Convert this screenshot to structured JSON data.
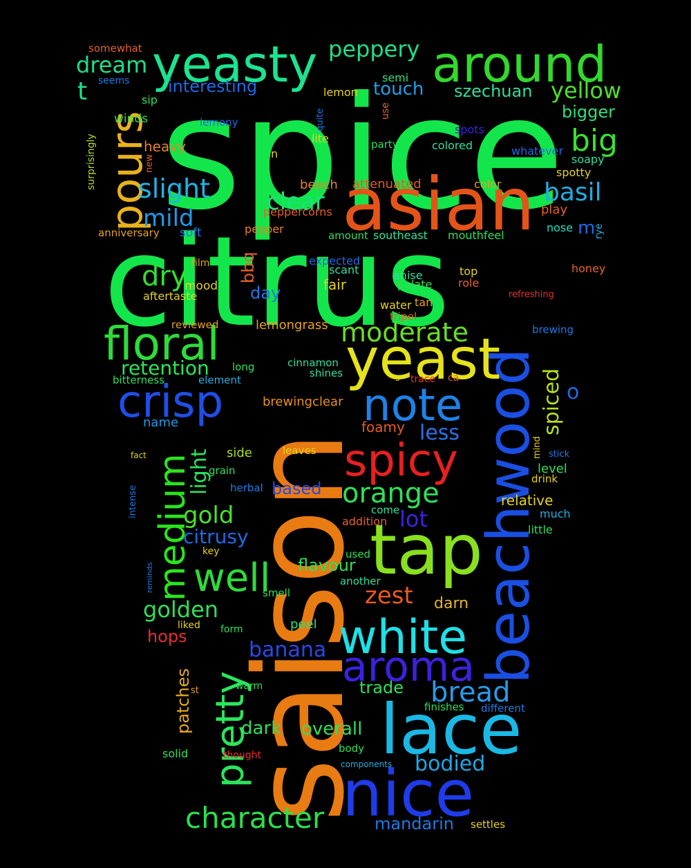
{
  "background_color": "#000000",
  "words": [
    {
      "text": "spice",
      "color": "#13E64A"
    },
    {
      "text": "citrus",
      "color": "#13E64A"
    },
    {
      "text": "saison",
      "color": "#E87B12"
    },
    {
      "text": "beachwood",
      "color": "#1B4FE3"
    },
    {
      "text": "asian",
      "color": "#E45419"
    },
    {
      "text": "yeasty",
      "color": "#1CE38F"
    },
    {
      "text": "around",
      "color": "#32D92C"
    },
    {
      "text": "yeast",
      "color": "#E6E21B"
    },
    {
      "text": "floral",
      "color": "#2EDB3A"
    },
    {
      "text": "tap",
      "color": "#8ADF1F"
    },
    {
      "text": "lace",
      "color": "#1BB8E5"
    },
    {
      "text": "nice",
      "color": "#1F3CEA"
    },
    {
      "text": "note",
      "color": "#1E82E8"
    },
    {
      "text": "crisp",
      "color": "#1F4FE8"
    },
    {
      "text": "white",
      "color": "#1EE0E6"
    },
    {
      "text": "spicy",
      "color": "#E82020"
    },
    {
      "text": "pours",
      "color": "#E8B21C"
    },
    {
      "text": "medium",
      "color": "#2AE51C"
    },
    {
      "text": "pretty",
      "color": "#2AE55C"
    },
    {
      "text": "well",
      "color": "#2EDB3A"
    },
    {
      "text": "aroma",
      "color": "#3A22E0"
    },
    {
      "text": "character",
      "color": "#2CE04A"
    },
    {
      "text": "bread",
      "color": "#2A9AE8"
    },
    {
      "text": "peppery",
      "color": "#1CE08A"
    },
    {
      "text": "slight",
      "color": "#1EB4E6"
    },
    {
      "text": "big",
      "color": "#3BE02E"
    },
    {
      "text": "orange",
      "color": "#2EE05A"
    },
    {
      "text": "moderate",
      "color": "#6ADE22"
    },
    {
      "text": "dream",
      "color": "#1CE08A"
    },
    {
      "text": "dry",
      "color": "#35DE30"
    },
    {
      "text": "basil",
      "color": "#1EAEE6"
    },
    {
      "text": "yellow",
      "color": "#52DE2A"
    },
    {
      "text": "mild",
      "color": "#1E9AE8"
    },
    {
      "text": "clear",
      "color": "#1CE07A"
    },
    {
      "text": "spiced",
      "color": "#B5E01E"
    },
    {
      "text": "gold",
      "color": "#4CE02A"
    },
    {
      "text": "golden",
      "color": "#2EE05A"
    },
    {
      "text": "zest",
      "color": "#E85A20"
    },
    {
      "text": "banana",
      "color": "#2A48E8"
    },
    {
      "text": "light",
      "color": "#2AE55C"
    },
    {
      "text": "bodied",
      "color": "#1EA8E6"
    },
    {
      "text": "t",
      "color": "#1CE08A"
    },
    {
      "text": "less",
      "color": "#2A72E8"
    },
    {
      "text": "lot",
      "color": "#3A22E0"
    },
    {
      "text": "interesting",
      "color": "#1E6AE6"
    },
    {
      "text": "touch",
      "color": "#1EA0E6"
    },
    {
      "text": "szechuan",
      "color": "#2EE0A0"
    },
    {
      "text": "bigger",
      "color": "#2EE07A"
    },
    {
      "text": "retention",
      "color": "#2AE55C"
    },
    {
      "text": "citrusy",
      "color": "#1E6AE6"
    },
    {
      "text": "flavour",
      "color": "#2EE05A"
    },
    {
      "text": "overall",
      "color": "#2EE05A"
    },
    {
      "text": "mandarin",
      "color": "#1E7AE6"
    },
    {
      "text": "trade",
      "color": "#2EE05A"
    },
    {
      "text": "patches",
      "color": "#E8AA1E"
    },
    {
      "text": "hops",
      "color": "#E82E2E"
    },
    {
      "text": "dark",
      "color": "#2EE05A"
    },
    {
      "text": "day",
      "color": "#1E7AE6"
    },
    {
      "text": "o",
      "color": "#1E6AE6"
    },
    {
      "text": "m",
      "color": "#1E6AE6"
    },
    {
      "text": "bbq",
      "color": "#E8602A"
    },
    {
      "text": "based",
      "color": "#2A48E8"
    },
    {
      "text": "darn",
      "color": "#E6B81E"
    },
    {
      "text": "fair",
      "color": "#E6D21E"
    },
    {
      "text": "foamy",
      "color": "#E85A20"
    },
    {
      "text": "peel",
      "color": "#2EE07A"
    },
    {
      "text": "brewingclear",
      "color": "#E8901E"
    },
    {
      "text": "lemongrass",
      "color": "#E8A21E"
    },
    {
      "text": "relative",
      "color": "#E6D21E"
    },
    {
      "text": "side",
      "color": "#AADE1E"
    },
    {
      "text": "heavy",
      "color": "#E8822A"
    },
    {
      "text": "beach",
      "color": "#E8822A"
    },
    {
      "text": "attenuated",
      "color": "#E85A20"
    },
    {
      "text": "name",
      "color": "#1E9AE8"
    },
    {
      "text": "level",
      "color": "#2EE05A"
    },
    {
      "text": "mood",
      "color": "#E6D21E"
    },
    {
      "text": "play",
      "color": "#E8602A"
    },
    {
      "text": "pepper",
      "color": "#E8822A"
    },
    {
      "text": "peppercorns",
      "color": "#E8602A"
    },
    {
      "text": "soft",
      "color": "#1E7AE6"
    },
    {
      "text": "winds",
      "color": "#2EE05A"
    },
    {
      "text": "lemon",
      "color": "#E6D21E"
    },
    {
      "text": "semi",
      "color": "#2EE07A"
    },
    {
      "text": "colored",
      "color": "#2EE0A0"
    },
    {
      "text": "spots",
      "color": "#3A22E0"
    },
    {
      "text": "whatever",
      "color": "#1E6AE6"
    },
    {
      "text": "soapy",
      "color": "#2EE0A0"
    },
    {
      "text": "spotty",
      "color": "#E6D21E"
    },
    {
      "text": "party",
      "color": "#2EE05A"
    },
    {
      "text": "color",
      "color": "#E8A21E"
    },
    {
      "text": "nose",
      "color": "#1EE0C0"
    },
    {
      "text": "honey",
      "color": "#E8602A"
    },
    {
      "text": "mouthfeel",
      "color": "#2EE05A"
    },
    {
      "text": "southeast",
      "color": "#2EE0A0"
    },
    {
      "text": "amount",
      "color": "#2EE05A"
    },
    {
      "text": "anniversary",
      "color": "#E8A21E"
    },
    {
      "text": "somewhat",
      "color": "#E8602A"
    },
    {
      "text": "seems",
      "color": "#1E7AE6"
    },
    {
      "text": "sip",
      "color": "#2EE05A"
    },
    {
      "text": "lemony",
      "color": "#1E6AE6"
    },
    {
      "text": "lite",
      "color": "#E6D21E"
    },
    {
      "text": "n",
      "color": "#E6D21E"
    },
    {
      "text": "expected",
      "color": "#1E6AE6"
    },
    {
      "text": "scant",
      "color": "#2EE0A0"
    },
    {
      "text": "anise",
      "color": "#2EE0A0"
    },
    {
      "text": "top",
      "color": "#E6D21E"
    },
    {
      "text": "role",
      "color": "#E8602A"
    },
    {
      "text": "palate",
      "color": "#2EE05A"
    },
    {
      "text": "water",
      "color": "#E6D21E"
    },
    {
      "text": "tan",
      "color": "#E8A21E"
    },
    {
      "text": "tripel",
      "color": "#E8602A"
    },
    {
      "text": "refreshing",
      "color": "#E82E2E"
    },
    {
      "text": "film",
      "color": "#E8A21E"
    },
    {
      "text": "aftertaste",
      "color": "#E6D21E"
    },
    {
      "text": "reviewed",
      "color": "#E8A21E"
    },
    {
      "text": "bitterness",
      "color": "#2EE05A"
    },
    {
      "text": "element",
      "color": "#1EB0E6"
    },
    {
      "text": "long",
      "color": "#2EE05A"
    },
    {
      "text": "cinnamon",
      "color": "#2EE0A0"
    },
    {
      "text": "shines",
      "color": "#2EE0A0"
    },
    {
      "text": "s",
      "color": "#E6D21E"
    },
    {
      "text": "trace",
      "color": "#E82E2E"
    },
    {
      "text": "ca",
      "color": "#E8602A"
    },
    {
      "text": "brewing",
      "color": "#1E7AE6"
    },
    {
      "text": "leaves",
      "color": "#E6D21E"
    },
    {
      "text": "grain",
      "color": "#2EE05A"
    },
    {
      "text": "herbal",
      "color": "#1E7AE6"
    },
    {
      "text": "fact",
      "color": "#E6D21E"
    },
    {
      "text": "intense",
      "color": "#1E7AE6"
    },
    {
      "text": "addition",
      "color": "#E8602A"
    },
    {
      "text": "come",
      "color": "#2EE0A0"
    },
    {
      "text": "key",
      "color": "#E6D21E"
    },
    {
      "text": "used",
      "color": "#2EE05A"
    },
    {
      "text": "another",
      "color": "#2EE0A0"
    },
    {
      "text": "smell",
      "color": "#2EE05A"
    },
    {
      "text": "reminds",
      "color": "#1E7AE6"
    },
    {
      "text": "liked",
      "color": "#E6D21E"
    },
    {
      "text": "form",
      "color": "#2EE05A"
    },
    {
      "text": "warm",
      "color": "#2EE05A"
    },
    {
      "text": "st",
      "color": "#E8A21E"
    },
    {
      "text": "solid",
      "color": "#2EE05A"
    },
    {
      "text": "thought",
      "color": "#E82E2E"
    },
    {
      "text": "body",
      "color": "#2EE05A"
    },
    {
      "text": "components",
      "color": "#1EB0E6"
    },
    {
      "text": "finishes",
      "color": "#2EE05A"
    },
    {
      "text": "different",
      "color": "#1E7AE6"
    },
    {
      "text": "settles",
      "color": "#E6D21E"
    },
    {
      "text": "much",
      "color": "#1EB0E6"
    },
    {
      "text": "little",
      "color": "#2EE05A"
    },
    {
      "text": "drink",
      "color": "#E6D21E"
    },
    {
      "text": "stick",
      "color": "#1E7AE6"
    },
    {
      "text": "mind",
      "color": "#E6D21E"
    },
    {
      "text": "rye",
      "color": "#1EB0E6"
    },
    {
      "text": "use",
      "color": "#E8602A"
    },
    {
      "text": "quite",
      "color": "#1E7AE6"
    },
    {
      "text": "new",
      "color": "#E8602A"
    },
    {
      "text": "surprisingly",
      "color": "#AADE1E"
    }
  ]
}
